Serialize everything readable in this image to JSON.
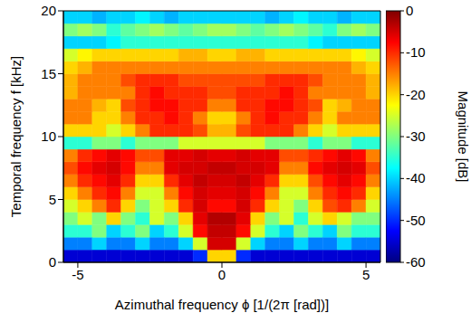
{
  "chart_data": {
    "type": "heatmap",
    "x_label": "Azimuthal frequency ϕ  [1/(2π [rad])]",
    "y_label": "Temporal frequency f [kHz]",
    "colorbar_label": "Magnitude [dB]",
    "xlim": [
      -5.5,
      5.5
    ],
    "ylim": [
      0,
      20
    ],
    "xticks": [
      -5,
      0,
      5
    ],
    "yticks": [
      0,
      5,
      10,
      15,
      20
    ],
    "colorbar_range": [
      -60,
      0
    ],
    "colorbar_ticks": [
      0,
      -10,
      -20,
      -30,
      -40,
      -50,
      -60
    ],
    "x_edges": [
      -5.5,
      -5,
      -4.5,
      -4,
      -3.5,
      -3,
      -2.5,
      -2,
      -1.5,
      -1,
      -0.5,
      0,
      0.5,
      1,
      1.5,
      2,
      2.5,
      3,
      3.5,
      4,
      4.5,
      5,
      5.5
    ],
    "y_edges": [
      0,
      1,
      2,
      3,
      4,
      5,
      6,
      7,
      8,
      9,
      10,
      11,
      12,
      13,
      14,
      15,
      16,
      17,
      18,
      19,
      20
    ],
    "z": [
      [
        -55,
        -55,
        -55,
        -55,
        -55,
        -55,
        -55,
        -55,
        -55,
        -50,
        -20,
        -20,
        -50,
        -55,
        -55,
        -55,
        -55,
        -55,
        -55,
        -55,
        -55,
        -55
      ],
      [
        -45,
        -45,
        -40,
        -45,
        -45,
        -40,
        -45,
        -45,
        -40,
        -25,
        -5,
        -5,
        -25,
        -40,
        -45,
        -45,
        -40,
        -45,
        -45,
        -40,
        -45,
        -45
      ],
      [
        -35,
        -35,
        -30,
        -40,
        -35,
        -30,
        -40,
        -35,
        -25,
        -8,
        -4,
        -4,
        -8,
        -25,
        -35,
        -40,
        -30,
        -35,
        -40,
        -30,
        -35,
        -35
      ],
      [
        -30,
        -25,
        -30,
        -20,
        -30,
        -35,
        -25,
        -30,
        -20,
        -6,
        -3,
        -3,
        -6,
        -20,
        -30,
        -25,
        -35,
        -25,
        -20,
        -25,
        -30,
        -30
      ],
      [
        -25,
        -20,
        -15,
        -10,
        -20,
        -30,
        -25,
        -20,
        -10,
        -5,
        -8,
        -8,
        -5,
        -10,
        -20,
        -25,
        -30,
        -20,
        -12,
        -10,
        -15,
        -25
      ],
      [
        -20,
        -15,
        -10,
        -8,
        -15,
        -25,
        -25,
        -15,
        -8,
        -5,
        -6,
        -6,
        -5,
        -8,
        -15,
        -25,
        -25,
        -15,
        -10,
        -8,
        -10,
        -20
      ],
      [
        -15,
        -10,
        -8,
        -6,
        -10,
        -20,
        -20,
        -10,
        -6,
        -4,
        -5,
        -5,
        -4,
        -6,
        -10,
        -20,
        -20,
        -12,
        -8,
        -6,
        -8,
        -15
      ],
      [
        -12,
        -8,
        -6,
        -5,
        -8,
        -15,
        -15,
        -6,
        -5,
        -5,
        -4,
        -4,
        -5,
        -5,
        -6,
        -15,
        -15,
        -8,
        -6,
        -5,
        -6,
        -12
      ],
      [
        -15,
        -10,
        -8,
        -6,
        -8,
        -12,
        -12,
        -6,
        -6,
        -5,
        -6,
        -6,
        -5,
        -6,
        -6,
        -12,
        -12,
        -10,
        -8,
        -6,
        -8,
        -15
      ],
      [
        -35,
        -35,
        -30,
        -30,
        -35,
        -30,
        -30,
        -30,
        -25,
        -25,
        -25,
        -25,
        -25,
        -25,
        -30,
        -30,
        -30,
        -35,
        -30,
        -30,
        -35,
        -35
      ],
      [
        -20,
        -20,
        -20,
        -25,
        -20,
        -15,
        -10,
        -10,
        -10,
        -12,
        -18,
        -18,
        -12,
        -10,
        -10,
        -10,
        -15,
        -20,
        -25,
        -20,
        -20,
        -20
      ],
      [
        -15,
        -15,
        -20,
        -20,
        -15,
        -10,
        -10,
        -8,
        -10,
        -15,
        -20,
        -20,
        -15,
        -10,
        -8,
        -10,
        -10,
        -15,
        -20,
        -15,
        -15,
        -15
      ],
      [
        -15,
        -15,
        -18,
        -20,
        -12,
        -10,
        -8,
        -8,
        -10,
        -10,
        -15,
        -15,
        -10,
        -10,
        -8,
        -8,
        -10,
        -12,
        -20,
        -18,
        -15,
        -15
      ],
      [
        -18,
        -15,
        -15,
        -15,
        -15,
        -10,
        -8,
        -10,
        -10,
        -10,
        -12,
        -12,
        -10,
        -10,
        -10,
        -8,
        -10,
        -15,
        -15,
        -15,
        -15,
        -18
      ],
      [
        -18,
        -15,
        -15,
        -15,
        -12,
        -10,
        -10,
        -10,
        -12,
        -12,
        -12,
        -12,
        -12,
        -12,
        -10,
        -10,
        -10,
        -12,
        -15,
        -15,
        -15,
        -18
      ],
      [
        -20,
        -18,
        -15,
        -15,
        -15,
        -15,
        -15,
        -15,
        -15,
        -15,
        -15,
        -15,
        -15,
        -15,
        -15,
        -15,
        -15,
        -15,
        -15,
        -15,
        -18,
        -20
      ],
      [
        -25,
        -22,
        -20,
        -20,
        -20,
        -20,
        -20,
        -20,
        -18,
        -18,
        -20,
        -20,
        -18,
        -18,
        -20,
        -20,
        -20,
        -20,
        -20,
        -20,
        -22,
        -25
      ],
      [
        -40,
        -40,
        -40,
        -38,
        -35,
        -35,
        -35,
        -35,
        -35,
        -35,
        -35,
        -35,
        -35,
        -35,
        -35,
        -35,
        -35,
        -38,
        -40,
        -40,
        -40,
        -40
      ],
      [
        -30,
        -28,
        -30,
        -35,
        -32,
        -30,
        -28,
        -30,
        -32,
        -30,
        -28,
        -28,
        -30,
        -32,
        -30,
        -28,
        -30,
        -32,
        -35,
        -30,
        -28,
        -30
      ],
      [
        -40,
        -40,
        -42,
        -40,
        -40,
        -38,
        -40,
        -42,
        -40,
        -40,
        -40,
        -40,
        -40,
        -40,
        -42,
        -40,
        -38,
        -40,
        -40,
        -42,
        -40,
        -40
      ]
    ]
  }
}
